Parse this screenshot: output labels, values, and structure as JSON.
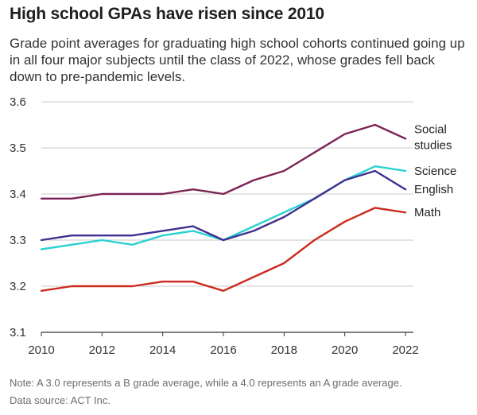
{
  "title": "High school GPAs have risen since 2010",
  "subtitle": "Grade point averages for graduating high school cohorts continued going up in all four major subjects until the class of 2022, whose grades fell back down to pre-pandemic levels.",
  "note": "Note: A 3.0 represents a B grade average, while a 4.0 represents an A grade average.",
  "source": "Data source: ACT Inc.",
  "chart_data": {
    "type": "line",
    "title": "High school GPAs have risen since 2010",
    "xlabel": "",
    "ylabel": "",
    "x": [
      2010,
      2011,
      2012,
      2013,
      2014,
      2015,
      2016,
      2017,
      2018,
      2019,
      2020,
      2021,
      2022
    ],
    "xticks": [
      "2010",
      "2012",
      "2014",
      "2016",
      "2018",
      "2020",
      "2022"
    ],
    "yticks": [
      "3.1",
      "3.2",
      "3.3",
      "3.4",
      "3.5",
      "3.6"
    ],
    "ylim": [
      3.1,
      3.6
    ],
    "series": [
      {
        "name": "Social studies",
        "label_lines": [
          "Social",
          "studies"
        ],
        "color": "#7b2356",
        "values": [
          3.39,
          3.39,
          3.4,
          3.4,
          3.4,
          3.41,
          3.4,
          3.43,
          3.45,
          3.49,
          3.53,
          3.55,
          3.52
        ]
      },
      {
        "name": "Science",
        "label_lines": [
          "Science"
        ],
        "color": "#2ad1d1",
        "values": [
          3.28,
          3.29,
          3.3,
          3.29,
          3.31,
          3.32,
          3.3,
          3.33,
          3.36,
          3.39,
          3.43,
          3.46,
          3.45
        ]
      },
      {
        "name": "English",
        "label_lines": [
          "English"
        ],
        "color": "#3f2f8f",
        "values": [
          3.3,
          3.31,
          3.31,
          3.31,
          3.32,
          3.33,
          3.3,
          3.32,
          3.35,
          3.39,
          3.43,
          3.45,
          3.41
        ]
      },
      {
        "name": "Math",
        "label_lines": [
          "Math"
        ],
        "color": "#cc2a1e",
        "values": [
          3.19,
          3.2,
          3.2,
          3.2,
          3.21,
          3.21,
          3.19,
          3.22,
          3.25,
          3.3,
          3.34,
          3.37,
          3.36
        ]
      }
    ]
  }
}
